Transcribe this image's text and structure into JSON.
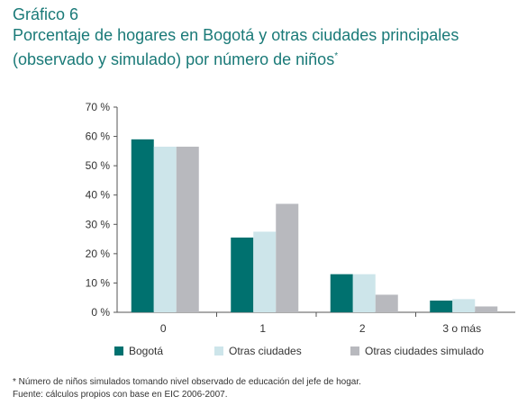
{
  "header": {
    "figure_label": "Gráfico 6",
    "title_line1": "Porcentaje de hogares en Bogotá y otras ciudades principales",
    "title_line2": "(observado y simulado) por número de niños",
    "title_footnote_marker": "*"
  },
  "notes": {
    "footnote": "* Número de niños simulados tomando nivel observado de educación del jefe de hogar.",
    "source": "Fuente: cálculos propios con base en EIC 2006-2007."
  },
  "colors": {
    "bogota": "#00716f",
    "otras": "#cde5ea",
    "simulado": "#b8b9be",
    "title": "#1a7a78",
    "axis": "#555555"
  },
  "chart_data": {
    "type": "bar",
    "categories": [
      "0",
      "1",
      "2",
      "3 o más"
    ],
    "series": [
      {
        "name": "Bogotá",
        "values": [
          59,
          25.5,
          13,
          4
        ]
      },
      {
        "name": "Otras ciudades",
        "values": [
          56.5,
          27.5,
          13,
          4.5
        ]
      },
      {
        "name": "Otras ciudades simulado",
        "values": [
          56.5,
          37,
          6,
          2
        ]
      }
    ],
    "ylim": [
      0,
      70
    ],
    "yticks": [
      0,
      10,
      20,
      30,
      40,
      50,
      60,
      70
    ],
    "ytick_labels": [
      "0 %",
      "10 %",
      "20 %",
      "30 %",
      "40 %",
      "50 %",
      "60 %",
      "70 %"
    ],
    "legend_position": "bottom",
    "grid": false
  }
}
